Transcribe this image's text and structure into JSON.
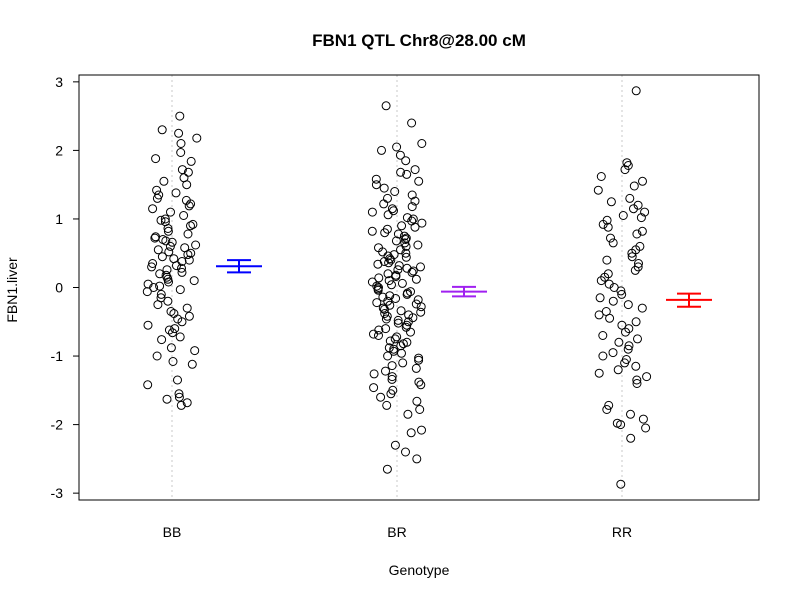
{
  "chart_data": {
    "type": "scatter",
    "title": "FBN1 QTL Chr8@28.00 cM",
    "xlabel": "Genotype",
    "ylabel": "FBN1.liver",
    "ylim": [
      -3.1,
      3.1
    ],
    "yticks": [
      "-3",
      "-2",
      "-1",
      "0",
      "1",
      "2",
      "3"
    ],
    "categories": [
      "BB",
      "BR",
      "RR"
    ],
    "grid": "vertical dotted lines at categories",
    "series": [
      {
        "category": "BB",
        "color": "#000000",
        "values": [
          2.5,
          2.3,
          2.25,
          2.18,
          2.1,
          1.97,
          1.88,
          1.84,
          1.72,
          1.68,
          1.6,
          1.55,
          1.5,
          1.42,
          1.38,
          1.35,
          1.3,
          1.27,
          1.22,
          1.19,
          1.15,
          1.1,
          1.05,
          1.0,
          0.98,
          0.96,
          0.92,
          0.9,
          0.86,
          0.82,
          0.78,
          0.74,
          0.72,
          0.7,
          0.68,
          0.66,
          0.62,
          0.6,
          0.58,
          0.55,
          0.52,
          0.5,
          0.48,
          0.45,
          0.42,
          0.4,
          0.38,
          0.35,
          0.32,
          0.3,
          0.28,
          0.26,
          0.22,
          0.2,
          0.18,
          0.15,
          0.12,
          0.1,
          0.08,
          0.05,
          0.02,
          0.0,
          -0.03,
          -0.06,
          -0.1,
          -0.15,
          -0.2,
          -0.25,
          -0.3,
          -0.35,
          -0.38,
          -0.42,
          -0.46,
          -0.5,
          -0.55,
          -0.6,
          -0.62,
          -0.66,
          -0.72,
          -0.76,
          -0.88,
          -0.92,
          -1.0,
          -1.08,
          -1.12,
          -1.35,
          -1.42,
          -1.55,
          -1.6,
          -1.63,
          -1.68,
          -1.72
        ]
      },
      {
        "category": "BR",
        "color": "#000000",
        "values": [
          2.65,
          2.4,
          2.1,
          2.05,
          2.0,
          1.93,
          1.85,
          1.72,
          1.68,
          1.65,
          1.58,
          1.55,
          1.5,
          1.45,
          1.4,
          1.35,
          1.3,
          1.26,
          1.22,
          1.18,
          1.15,
          1.12,
          1.1,
          1.06,
          1.02,
          1.0,
          0.97,
          0.94,
          0.9,
          0.88,
          0.85,
          0.82,
          0.8,
          0.78,
          0.75,
          0.72,
          0.7,
          0.68,
          0.65,
          0.62,
          0.6,
          0.58,
          0.55,
          0.52,
          0.5,
          0.48,
          0.46,
          0.44,
          0.42,
          0.4,
          0.38,
          0.36,
          0.34,
          0.32,
          0.3,
          0.28,
          0.26,
          0.24,
          0.22,
          0.2,
          0.18,
          0.16,
          0.14,
          0.12,
          0.1,
          0.08,
          0.06,
          0.04,
          0.02,
          0.0,
          -0.02,
          -0.04,
          -0.06,
          -0.08,
          -0.1,
          -0.12,
          -0.14,
          -0.16,
          -0.18,
          -0.2,
          -0.22,
          -0.24,
          -0.26,
          -0.28,
          -0.3,
          -0.32,
          -0.34,
          -0.36,
          -0.38,
          -0.4,
          -0.42,
          -0.44,
          -0.46,
          -0.48,
          -0.5,
          -0.52,
          -0.55,
          -0.58,
          -0.6,
          -0.62,
          -0.65,
          -0.68,
          -0.7,
          -0.72,
          -0.75,
          -0.78,
          -0.8,
          -0.82,
          -0.85,
          -0.88,
          -0.9,
          -0.93,
          -0.96,
          -1.0,
          -1.03,
          -1.06,
          -1.1,
          -1.14,
          -1.18,
          -1.22,
          -1.26,
          -1.3,
          -1.34,
          -1.38,
          -1.42,
          -1.46,
          -1.5,
          -1.55,
          -1.6,
          -1.66,
          -1.72,
          -1.78,
          -1.85,
          -2.08,
          -2.12,
          -2.3,
          -2.4,
          -2.5,
          -2.65
        ]
      },
      {
        "category": "RR",
        "color": "#000000",
        "values": [
          2.87,
          1.82,
          1.78,
          1.72,
          1.62,
          1.55,
          1.48,
          1.42,
          1.3,
          1.25,
          1.2,
          1.15,
          1.1,
          1.05,
          1.02,
          0.98,
          0.92,
          0.88,
          0.82,
          0.78,
          0.72,
          0.65,
          0.6,
          0.55,
          0.5,
          0.45,
          0.4,
          0.35,
          0.3,
          0.25,
          0.2,
          0.15,
          0.1,
          0.05,
          0.0,
          -0.05,
          -0.1,
          -0.15,
          -0.2,
          -0.25,
          -0.3,
          -0.35,
          -0.4,
          -0.45,
          -0.5,
          -0.55,
          -0.6,
          -0.65,
          -0.7,
          -0.75,
          -0.8,
          -0.85,
          -0.9,
          -0.95,
          -1.0,
          -1.05,
          -1.1,
          -1.15,
          -1.2,
          -1.25,
          -1.3,
          -1.35,
          -1.4,
          -1.72,
          -1.78,
          -1.85,
          -1.92,
          -1.98,
          -2.0,
          -2.05,
          -2.2,
          -2.87
        ]
      }
    ],
    "mean_se": [
      {
        "category": "BB",
        "color": "#0000ff",
        "mean": 0.31,
        "lower": 0.22,
        "upper": 0.4
      },
      {
        "category": "BR",
        "color": "#a020f0",
        "mean": -0.06,
        "lower": -0.13,
        "upper": 0.01
      },
      {
        "category": "RR",
        "color": "#ff0000",
        "mean": -0.18,
        "lower": -0.28,
        "upper": -0.09
      }
    ]
  }
}
